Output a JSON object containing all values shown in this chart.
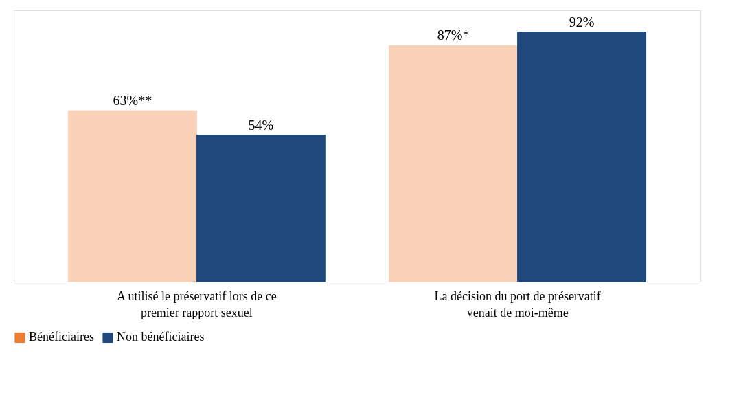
{
  "chart_data": {
    "type": "bar",
    "categories": [
      "A utilisé le préservatif  lors de ce premier rapport sexuel",
      "La décision du port de préservatif venait de moi-même"
    ],
    "series": [
      {
        "name": "Bénéficiaires",
        "color": "#ed7d31",
        "values": [
          63,
          87
        ],
        "value_labels": [
          "63%**",
          "87%*"
        ]
      },
      {
        "name": "Non bénéficiaires",
        "color": "#1f497d",
        "values": [
          54,
          92
        ],
        "value_labels": [
          "54%",
          "92%"
        ]
      }
    ],
    "legend": "bottom",
    "grid": false
  }
}
